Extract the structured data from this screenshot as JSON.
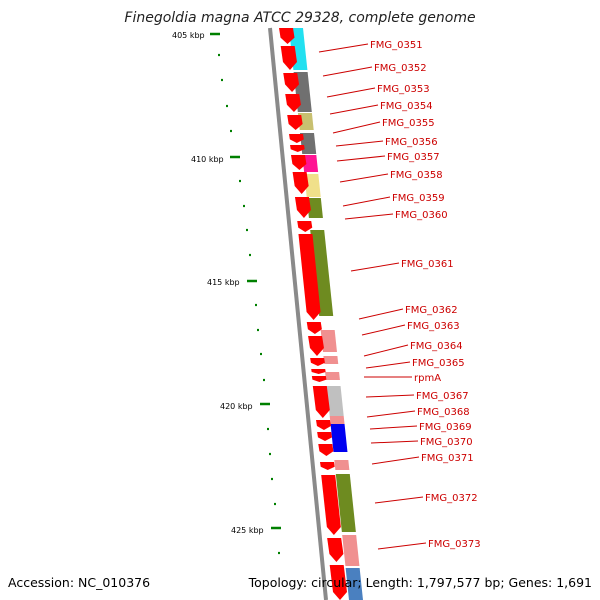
{
  "title": "Finegoldia magna ATCC 29328, complete genome",
  "footer": {
    "accession": "Accession: NC_010376",
    "summary": "Topology: circular; Length: 1,797,577 bp; Genes: 1,691"
  },
  "scale_labels": [
    "405 kbp",
    "410 kbp",
    "415 kbp",
    "420 kbp",
    "425 kbp"
  ],
  "gene_labels": [
    "FMG_0351",
    "FMG_0352",
    "FMG_0353",
    "FMG_0354",
    "FMG_0355",
    "FMG_0356",
    "FMG_0357",
    "FMG_0358",
    "FMG_0359",
    "FMG_0360",
    "FMG_0361",
    "FMG_0362",
    "FMG_0363",
    "FMG_0364",
    "FMG_0365",
    "rpmA",
    "FMG_0367",
    "FMG_0368",
    "FMG_0369",
    "FMG_0370",
    "FMG_0371",
    "FMG_0372",
    "FMG_0373"
  ],
  "colors": {
    "cds_arrow": "#ff0000",
    "leader_line": "#cc0000",
    "scale_tick": "#008000",
    "backbone": "#8a8a8a",
    "cog_cyan": "#22e0f0",
    "cog_gray": "#707070",
    "cog_khaki": "#c8c070",
    "cog_magenta": "#ff1493",
    "cog_yellow": "#f0e08a",
    "cog_olive": "#6e8b20",
    "cog_pink": "#f09090",
    "cog_silver": "#c0c0c0",
    "cog_blue": "#0000f0",
    "cog_steelblue": "#4a80c0"
  }
}
